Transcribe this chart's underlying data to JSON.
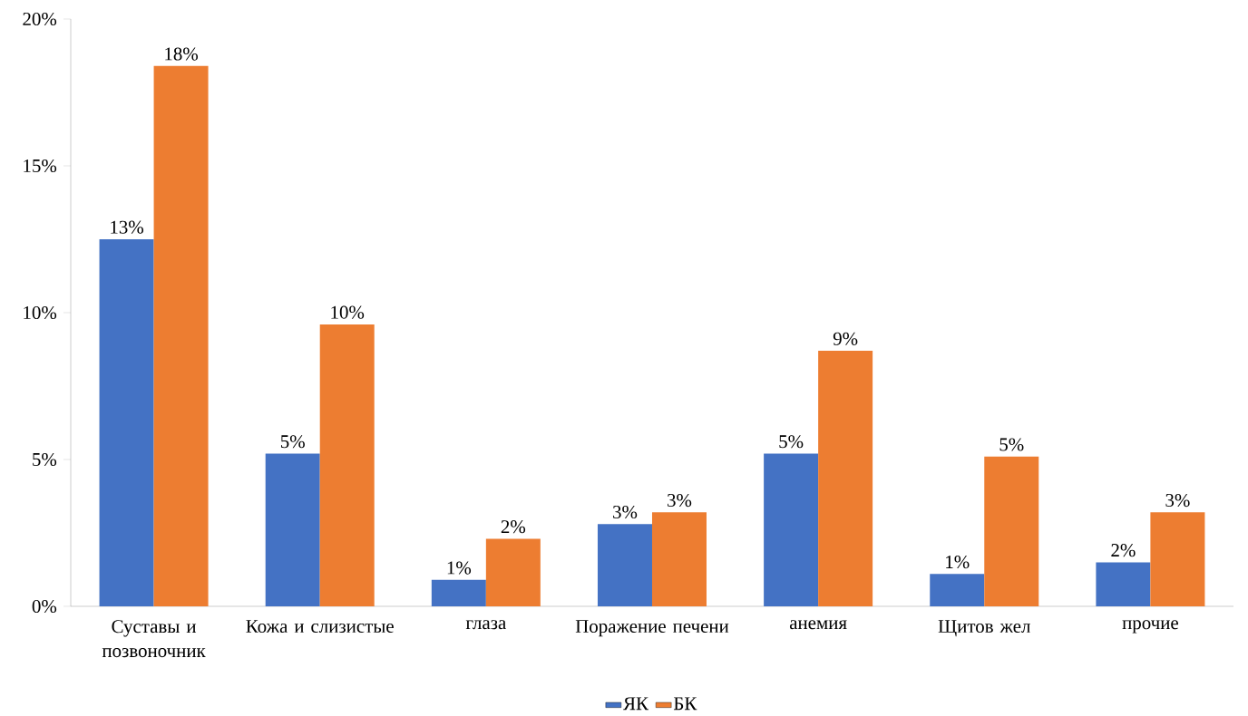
{
  "chart_data": {
    "type": "bar",
    "categories": [
      "Суставы и позвоночник",
      "Кожа и слизистые",
      "глаза",
      "Поражение печени",
      "анемия",
      "Щитов жел",
      "прочие"
    ],
    "series": [
      {
        "name": "ЯК",
        "color": "#4472c4",
        "values": [
          12.5,
          5.2,
          0.9,
          2.8,
          5.2,
          1.1,
          1.5
        ],
        "value_labels": [
          "13%",
          "5%",
          "1%",
          "3%",
          "5%",
          "1%",
          "2%"
        ]
      },
      {
        "name": "БК",
        "color": "#ed7d31",
        "values": [
          18.4,
          9.6,
          2.3,
          3.2,
          8.7,
          5.1,
          3.2
        ],
        "value_labels": [
          "18%",
          "10%",
          "2%",
          "3%",
          "9%",
          "5%",
          "3%"
        ]
      }
    ],
    "ylim": [
      0,
      20
    ],
    "yticks": [
      {
        "value": 0,
        "label": "0%"
      },
      {
        "value": 5,
        "label": "5%"
      },
      {
        "value": 10,
        "label": "10%"
      },
      {
        "value": 15,
        "label": "15%"
      },
      {
        "value": 20,
        "label": "20%"
      }
    ],
    "grid": false,
    "legend": "bottom"
  }
}
